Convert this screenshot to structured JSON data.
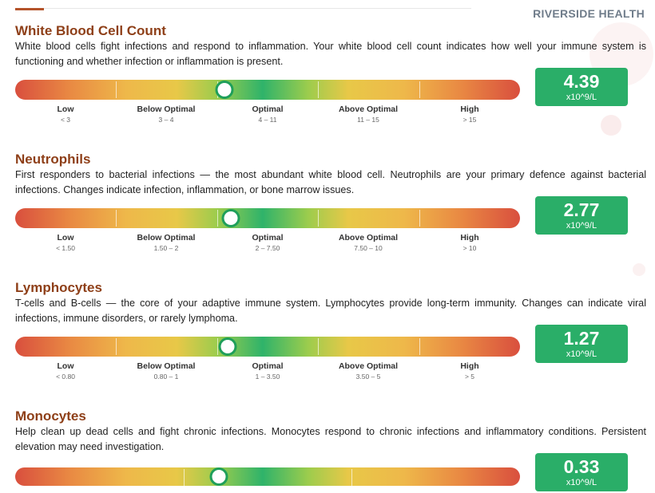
{
  "header": {
    "brand": "RIVERSIDE HEALTH"
  },
  "markers": [
    {
      "title": "White Blood Cell Count",
      "description": "White blood cells fight infections and respond to inflammation. Your white blood cell count indicates how well your immune system is functioning and whether infection or inflammation is present.",
      "value": "4.39",
      "unit": "x10^9/L",
      "status": "Optimal",
      "scale_position": 0.415,
      "zones": [
        {
          "name": "Low",
          "range": "< 3"
        },
        {
          "name": "Below Optimal",
          "range": "3 – 4"
        },
        {
          "name": "Optimal",
          "range": "4 – 11"
        },
        {
          "name": "Above Optimal",
          "range": "11 – 15"
        },
        {
          "name": "High",
          "range": "> 15"
        }
      ]
    },
    {
      "title": "Neutrophils",
      "description": "First responders to bacterial infections — the most abundant white blood cell. Neutrophils are your primary defence against bacterial infections. Changes indicate infection, inflammation, or bone marrow issues.",
      "value": "2.77",
      "unit": "x10^9/L",
      "status": "Optimal",
      "scale_position": 0.428,
      "zones": [
        {
          "name": "Low",
          "range": "< 1.50"
        },
        {
          "name": "Below Optimal",
          "range": "1.50 – 2"
        },
        {
          "name": "Optimal",
          "range": "2 – 7.50"
        },
        {
          "name": "Above Optimal",
          "range": "7.50 – 10"
        },
        {
          "name": "High",
          "range": "> 10"
        }
      ]
    },
    {
      "title": "Lymphocytes",
      "description": "T-cells and B-cells — the core of your adaptive immune system. Lymphocytes provide long-term immunity. Changes can indicate viral infections, immune disorders, or rarely lymphoma.",
      "value": "1.27",
      "unit": "x10^9/L",
      "status": "Optimal",
      "scale_position": 0.421,
      "zones": [
        {
          "name": "Low",
          "range": "< 0.80"
        },
        {
          "name": "Below Optimal",
          "range": "0.80 – 1"
        },
        {
          "name": "Optimal",
          "range": "1 – 3.50"
        },
        {
          "name": "Above Optimal",
          "range": "3.50 – 5"
        },
        {
          "name": "High",
          "range": "> 5"
        }
      ]
    },
    {
      "title": "Monocytes",
      "description": "Help clean up dead cells and fight chronic infections. Monocytes respond to chronic infections and inflammatory conditions. Persistent elevation may need investigation.",
      "value": "0.33",
      "unit": "x10^9/L",
      "status": "Optimal",
      "scale_position": 0.404,
      "zones": []
    }
  ]
}
